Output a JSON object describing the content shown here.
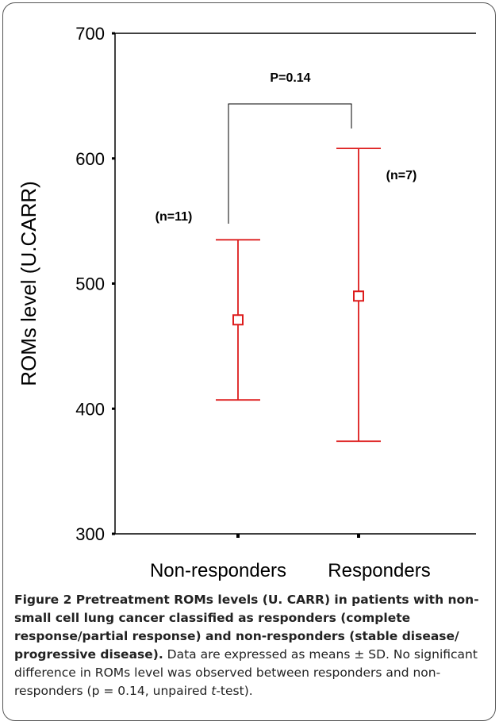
{
  "chart_data": {
    "type": "errorbar",
    "ylabel": "ROMs level (U.CARR)",
    "ylim": [
      300,
      700
    ],
    "yticks": [
      300,
      400,
      500,
      600,
      700
    ],
    "categories": [
      "Non-responders",
      "Responders"
    ],
    "series": [
      {
        "means": [
          471,
          490
        ],
        "lower": [
          407,
          374
        ],
        "upper": [
          535,
          608
        ],
        "color": "#dd1c1c"
      }
    ],
    "group_labels": [
      "(n=11)",
      "(n=7)"
    ],
    "annotation": "P=0.14",
    "grid": false
  },
  "caption": {
    "bold": "Figure 2 Pretreatment ROMs levels (U. CARR) in patients with non-small cell lung cancer classified as responders (complete response/partial response) and non-responders (stable disease/ progressive disease).",
    "text_1": " Data are expressed as means ± SD. No significant difference in ROMs level was observed between responders and non-responders (p = 0.14, unpaired ",
    "italic": "t",
    "text_2": "-test)."
  }
}
